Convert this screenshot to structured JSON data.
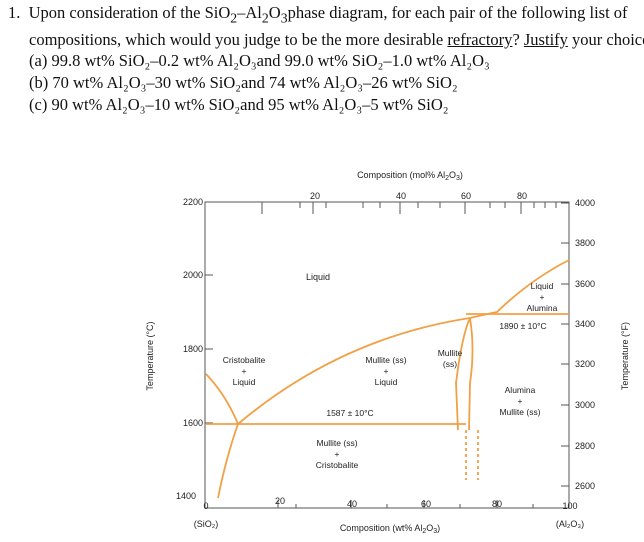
{
  "question": {
    "number": "1.",
    "line1_pre": "Upon consideration of the SiO",
    "line1_sub1": "2",
    "line1_mid": "–Al",
    "line1_sub2": "2",
    "line1_mid2": "O",
    "line1_sub3": "3",
    "line1_post": "phase diagram, for each pair of the following list of",
    "line2_pre": "compositions, which would you judge to be the more desirable",
    "line2_u1": "refractory",
    "line2_mid": "?",
    "line2_u2": "Justify",
    "line2_post": "your choices.",
    "part_a": "(a) 99.8 wt% SiO₂–0.2 wt% Al₂O₃and 99.0 wt% SiO₂–1.0 wt% Al₂O₃",
    "part_b": "(b) 70 wt% Al₂O₃–30 wt% SiO₂and 74 wt% Al₂O₃–26 wt% SiO₂",
    "part_c": "(c) 90 wt% Al₂O₃–10 wt% SiO₂and 95 wt% Al₂O₃–5 wt% SiO₂"
  },
  "diagram": {
    "top_axis_title_pre": "Composition (mol% Al",
    "top_axis_title_sub1": "2",
    "top_axis_title_mid": "O",
    "top_axis_title_sub2": "3",
    "top_axis_title_post": ")",
    "top_ticks": [
      "20",
      "40",
      "60",
      "80"
    ],
    "bottom_axis_title_pre": "Composition (wt% Al",
    "bottom_axis_title_sub1": "2",
    "bottom_axis_title_mid": "O",
    "bottom_axis_title_sub2": "3",
    "bottom_axis_title_post": ")",
    "bottom_ticks": [
      "0",
      "20",
      "40",
      "60",
      "80",
      "100"
    ],
    "bottom_left_label": "(SiO₂)",
    "bottom_right_label": "(Al₂O₃)",
    "left_axis_title": "Temperature (°C)",
    "left_ticks": [
      "1400",
      "1600",
      "1800",
      "2000",
      "2200"
    ],
    "right_axis_title": "Temperature (°F)",
    "right_ticks": [
      "2600",
      "2800",
      "3000",
      "3200",
      "3400",
      "3600",
      "3800",
      "4000"
    ],
    "labels": {
      "liquid": "Liquid",
      "liquid_plus_alumina_1": "Liquid",
      "liquid_plus_alumina_2": "+",
      "liquid_plus_alumina_3": "Alumina",
      "eutectic_high": "1890 ± 10°C",
      "cristobalite_1": "Cristobalite",
      "cristobalite_2": "+",
      "cristobalite_3": "Liquid",
      "mullite_liquid_1": "Mullite (ss)",
      "mullite_liquid_2": "+",
      "mullite_liquid_3": "Liquid",
      "mullite_ss_1": "Mullite",
      "mullite_ss_2": "(ss)",
      "eutectic_low": "1587 ± 10°C",
      "alumina_mullite_1": "Alumina",
      "alumina_mullite_2": "+",
      "alumina_mullite_3": "Mullite (ss)",
      "mullite_crist_1": "Mullite (ss)",
      "mullite_crist_2": "+",
      "mullite_crist_3": "Cristobalite"
    },
    "colors": {
      "phase_line": "#f2a044",
      "axis": "#555555"
    }
  }
}
